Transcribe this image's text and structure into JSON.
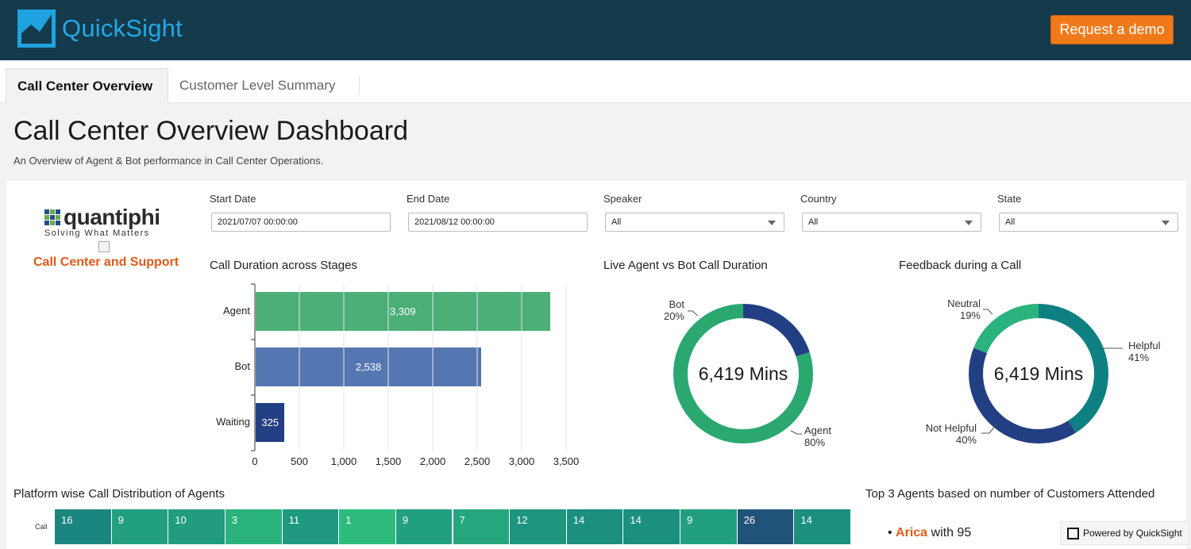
{
  "brand": {
    "name": "QuickSight",
    "demo_button": "Request a demo",
    "logo_color": "#1fa3e0"
  },
  "tabs": [
    {
      "label": "Call Center Overview",
      "active": true
    },
    {
      "label": "Customer Level Summary",
      "active": false
    }
  ],
  "dashboard": {
    "title": "Call Center Overview Dashboard",
    "subtitle": "An Overview of Agent & Bot performance in Call Center Operations."
  },
  "sidebar": {
    "logo_text": "quantiphi",
    "tagline": "Solving What Matters",
    "section_title": "Call Center and Support"
  },
  "filters": [
    {
      "label": "Start Date",
      "value": "2021/07/07 00:00:00",
      "type": "date"
    },
    {
      "label": "End Date",
      "value": "2021/08/12 00:00:00",
      "type": "date"
    },
    {
      "label": "Speaker",
      "value": "All",
      "type": "select"
    },
    {
      "label": "Country",
      "value": "All",
      "type": "select"
    },
    {
      "label": "State",
      "value": "All",
      "type": "select"
    }
  ],
  "chart_data": [
    {
      "type": "bar",
      "title": "Call Duration across Stages",
      "orientation": "horizontal",
      "categories": [
        "Agent",
        "Bot",
        "Waiting"
      ],
      "values": [
        3309,
        2538,
        325
      ],
      "value_labels": [
        "3,309",
        "2,538",
        "325"
      ],
      "colors": [
        "#4caf78",
        "#5577b1",
        "#233f83"
      ],
      "xlim": [
        0,
        3500
      ],
      "xticks": [
        "0",
        "500",
        "1,000",
        "1,500",
        "2,000",
        "2,500",
        "3,000",
        "3,500"
      ]
    },
    {
      "type": "pie",
      "title": "Live Agent vs Bot Call Duration",
      "center_label": "6,419 Mins",
      "slices": [
        {
          "name": "Bot",
          "percent": 20,
          "label": "20%",
          "color": "#233f83"
        },
        {
          "name": "Agent",
          "percent": 80,
          "label": "80%",
          "color": "#2ba870"
        }
      ]
    },
    {
      "type": "pie",
      "title": "Feedback during a Call",
      "center_label": "6,419 Mins",
      "slices": [
        {
          "name": "Helpful",
          "percent": 41,
          "label": "41%",
          "color": "#0f8081"
        },
        {
          "name": "Not Helpful",
          "percent": 40,
          "label": "40%",
          "color": "#233f83"
        },
        {
          "name": "Neutral",
          "percent": 19,
          "label": "19%",
          "color": "#2ab37e"
        }
      ]
    },
    {
      "type": "heatmap",
      "title": "Platform wise Call Distribution of Agents",
      "row_label": "Call",
      "values": [
        16,
        9,
        10,
        3,
        11,
        1,
        9,
        7,
        12,
        14,
        14,
        9,
        26,
        14
      ],
      "value_labels": [
        "16",
        "9",
        "10",
        "3",
        "11",
        "1",
        "9",
        "7",
        "12",
        "14",
        "14",
        "9",
        "26",
        "14"
      ]
    }
  ],
  "top_agents": {
    "title": "Top 3 Agents based on number of Customers Attended",
    "items": [
      {
        "name": "Arica",
        "text": "with 95"
      }
    ]
  },
  "footer": {
    "powered_by": "Powered by QuickSight"
  }
}
